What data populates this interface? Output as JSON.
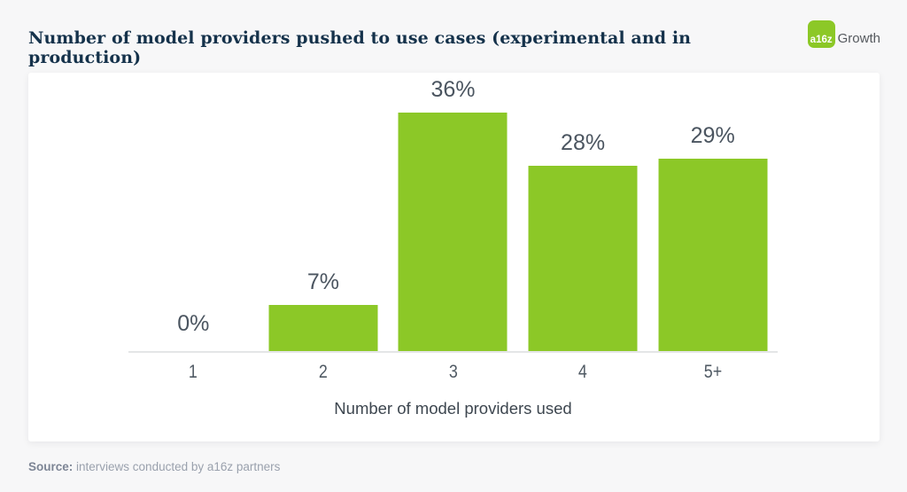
{
  "header": {
    "title": "Number of model providers pushed to use cases (experimental and in production)",
    "logo": {
      "badge": "a16z",
      "suffix": "Growth",
      "badge_color": "#8CC827"
    }
  },
  "chart_data": {
    "type": "bar",
    "categories": [
      "1",
      "2",
      "3",
      "4",
      "5+"
    ],
    "values": [
      0,
      7,
      36,
      28,
      29
    ],
    "value_labels": [
      "0%",
      "7%",
      "36%",
      "28%",
      "29%"
    ],
    "title": "Number of model providers pushed to use cases (experimental and in production)",
    "xlabel": "Number of model providers used",
    "ylabel": "",
    "ylim": [
      0,
      38
    ],
    "bar_color": "#8CC827",
    "label_color": "#4b5560",
    "grid": false,
    "legend": null
  },
  "footer": {
    "source_label": "Source:",
    "source_text": "interviews conducted by a16z partners"
  }
}
